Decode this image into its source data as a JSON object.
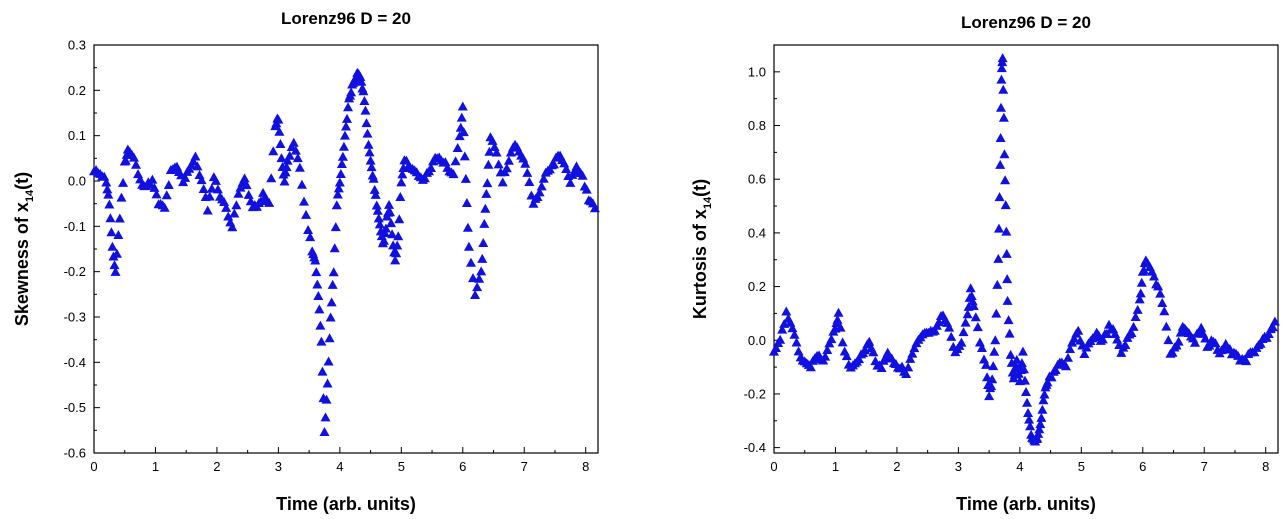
{
  "chart_data": [
    {
      "type": "scatter",
      "title": "Lorenz96   D = 20",
      "xlabel": "Time   (arb.  units)",
      "ylabel": "Skewness of x",
      "ylabel_sub": "14",
      "ylabel_suffix": "(t)",
      "xlim": [
        0,
        8.2
      ],
      "ylim": [
        -0.6,
        0.3
      ],
      "xticks": [
        0,
        1,
        2,
        3,
        4,
        5,
        6,
        7,
        8
      ],
      "yticks": [
        -0.6,
        -0.5,
        -0.4,
        -0.3,
        -0.2,
        -0.1,
        0.0,
        0.1,
        0.2,
        0.3
      ],
      "ytick_labels": [
        "-0.6",
        "-0.5",
        "-0.4",
        "-0.3",
        "-0.2",
        "-0.1",
        "0.0",
        "0.1",
        "0.2",
        "0.3"
      ],
      "marker": "triangle",
      "color": "#1010e0",
      "keypoints": [
        [
          0.0,
          0.02
        ],
        [
          0.1,
          0.02
        ],
        [
          0.2,
          0.0
        ],
        [
          0.25,
          -0.05
        ],
        [
          0.3,
          -0.15
        ],
        [
          0.35,
          -0.2
        ],
        [
          0.42,
          -0.08
        ],
        [
          0.5,
          0.04
        ],
        [
          0.55,
          0.07
        ],
        [
          0.65,
          0.05
        ],
        [
          0.75,
          0.0
        ],
        [
          0.85,
          -0.01
        ],
        [
          0.95,
          0.0
        ],
        [
          1.05,
          -0.05
        ],
        [
          1.15,
          -0.06
        ],
        [
          1.25,
          0.02
        ],
        [
          1.35,
          0.03
        ],
        [
          1.45,
          0.0
        ],
        [
          1.55,
          0.03
        ],
        [
          1.65,
          0.05
        ],
        [
          1.75,
          0.0
        ],
        [
          1.85,
          -0.06
        ],
        [
          1.95,
          0.01
        ],
        [
          2.05,
          -0.03
        ],
        [
          2.15,
          -0.06
        ],
        [
          2.25,
          -0.1
        ],
        [
          2.35,
          -0.03
        ],
        [
          2.45,
          0.01
        ],
        [
          2.55,
          -0.05
        ],
        [
          2.65,
          -0.06
        ],
        [
          2.75,
          -0.03
        ],
        [
          2.85,
          -0.05
        ],
        [
          2.95,
          0.12
        ],
        [
          3.0,
          0.14
        ],
        [
          3.05,
          0.05
        ],
        [
          3.1,
          0.0
        ],
        [
          3.15,
          0.05
        ],
        [
          3.25,
          0.08
        ],
        [
          3.35,
          0.03
        ],
        [
          3.45,
          -0.08
        ],
        [
          3.55,
          -0.15
        ],
        [
          3.6,
          -0.18
        ],
        [
          3.65,
          -0.25
        ],
        [
          3.7,
          -0.35
        ],
        [
          3.75,
          -0.55
        ],
        [
          3.8,
          -0.45
        ],
        [
          3.85,
          -0.3
        ],
        [
          3.9,
          -0.2
        ],
        [
          3.95,
          -0.05
        ],
        [
          4.0,
          0.0
        ],
        [
          4.05,
          0.05
        ],
        [
          4.1,
          0.12
        ],
        [
          4.15,
          0.18
        ],
        [
          4.2,
          0.21
        ],
        [
          4.25,
          0.23
        ],
        [
          4.3,
          0.24
        ],
        [
          4.35,
          0.22
        ],
        [
          4.4,
          0.18
        ],
        [
          4.45,
          0.1
        ],
        [
          4.5,
          0.05
        ],
        [
          4.55,
          0.0
        ],
        [
          4.6,
          -0.05
        ],
        [
          4.65,
          -0.1
        ],
        [
          4.7,
          -0.14
        ],
        [
          4.75,
          -0.1
        ],
        [
          4.8,
          -0.05
        ],
        [
          4.85,
          -0.12
        ],
        [
          4.9,
          -0.18
        ],
        [
          4.95,
          -0.12
        ],
        [
          5.0,
          0.0
        ],
        [
          5.05,
          0.05
        ],
        [
          5.15,
          0.03
        ],
        [
          5.25,
          0.02
        ],
        [
          5.35,
          0.0
        ],
        [
          5.45,
          0.02
        ],
        [
          5.55,
          0.05
        ],
        [
          5.65,
          0.05
        ],
        [
          5.75,
          0.03
        ],
        [
          5.85,
          0.02
        ],
        [
          5.95,
          0.1
        ],
        [
          6.0,
          0.16
        ],
        [
          6.05,
          0.0
        ],
        [
          6.1,
          -0.15
        ],
        [
          6.2,
          -0.25
        ],
        [
          6.3,
          -0.2
        ],
        [
          6.35,
          -0.1
        ],
        [
          6.4,
          0.0
        ],
        [
          6.45,
          0.1
        ],
        [
          6.55,
          0.06
        ],
        [
          6.65,
          0.0
        ],
        [
          6.75,
          0.05
        ],
        [
          6.85,
          0.08
        ],
        [
          6.95,
          0.06
        ],
        [
          7.05,
          0.02
        ],
        [
          7.15,
          -0.05
        ],
        [
          7.25,
          -0.02
        ],
        [
          7.35,
          0.02
        ],
        [
          7.45,
          0.03
        ],
        [
          7.55,
          0.06
        ],
        [
          7.65,
          0.04
        ],
        [
          7.75,
          0.0
        ],
        [
          7.85,
          0.03
        ],
        [
          7.95,
          0.01
        ],
        [
          8.05,
          -0.04
        ],
        [
          8.15,
          -0.06
        ]
      ]
    },
    {
      "type": "scatter",
      "title": "Lorenz96   D = 20",
      "xlabel": "Time   (arb.  units)",
      "ylabel": "Kurtosis of x",
      "ylabel_sub": "14",
      "ylabel_suffix": "(t)",
      "xlim": [
        0,
        8.2
      ],
      "ylim": [
        -0.42,
        1.1
      ],
      "xticks": [
        0,
        1,
        2,
        3,
        4,
        5,
        6,
        7,
        8
      ],
      "yticks": [
        -0.4,
        -0.2,
        0.0,
        0.2,
        0.4,
        0.6,
        0.8,
        1.0
      ],
      "ytick_labels": [
        "-0.4",
        "-0.2",
        "0.0",
        "0.2",
        "0.4",
        "0.6",
        "0.8",
        "1.0"
      ],
      "marker": "triangle",
      "color": "#1010e0",
      "keypoints": [
        [
          0.0,
          -0.05
        ],
        [
          0.1,
          0.0
        ],
        [
          0.2,
          0.1
        ],
        [
          0.3,
          0.05
        ],
        [
          0.4,
          -0.05
        ],
        [
          0.5,
          -0.08
        ],
        [
          0.6,
          -0.1
        ],
        [
          0.7,
          -0.05
        ],
        [
          0.8,
          -0.08
        ],
        [
          0.9,
          -0.02
        ],
        [
          1.0,
          0.05
        ],
        [
          1.05,
          0.1
        ],
        [
          1.15,
          -0.05
        ],
        [
          1.25,
          -0.1
        ],
        [
          1.35,
          -0.08
        ],
        [
          1.45,
          -0.05
        ],
        [
          1.55,
          0.0
        ],
        [
          1.65,
          -0.08
        ],
        [
          1.75,
          -0.1
        ],
        [
          1.85,
          -0.05
        ],
        [
          1.95,
          -0.08
        ],
        [
          2.05,
          -0.1
        ],
        [
          2.15,
          -0.12
        ],
        [
          2.25,
          -0.05
        ],
        [
          2.35,
          0.0
        ],
        [
          2.45,
          0.02
        ],
        [
          2.55,
          0.03
        ],
        [
          2.65,
          0.05
        ],
        [
          2.75,
          0.1
        ],
        [
          2.85,
          0.05
        ],
        [
          2.95,
          -0.05
        ],
        [
          3.05,
          0.0
        ],
        [
          3.15,
          0.1
        ],
        [
          3.2,
          0.2
        ],
        [
          3.25,
          0.12
        ],
        [
          3.35,
          0.0
        ],
        [
          3.45,
          -0.1
        ],
        [
          3.5,
          -0.2
        ],
        [
          3.55,
          -0.15
        ],
        [
          3.6,
          0.0
        ],
        [
          3.65,
          0.3
        ],
        [
          3.68,
          0.65
        ],
        [
          3.7,
          0.98
        ],
        [
          3.72,
          1.06
        ],
        [
          3.75,
          0.7
        ],
        [
          3.78,
          0.4
        ],
        [
          3.8,
          0.15
        ],
        [
          3.85,
          -0.05
        ],
        [
          3.9,
          -0.15
        ],
        [
          3.95,
          -0.08
        ],
        [
          4.0,
          -0.15
        ],
        [
          4.05,
          -0.05
        ],
        [
          4.1,
          -0.2
        ],
        [
          4.15,
          -0.3
        ],
        [
          4.2,
          -0.37
        ],
        [
          4.25,
          -0.38
        ],
        [
          4.3,
          -0.35
        ],
        [
          4.35,
          -0.28
        ],
        [
          4.4,
          -0.2
        ],
        [
          4.45,
          -0.15
        ],
        [
          4.55,
          -0.12
        ],
        [
          4.65,
          -0.08
        ],
        [
          4.75,
          -0.1
        ],
        [
          4.85,
          0.0
        ],
        [
          4.95,
          0.03
        ],
        [
          5.05,
          -0.05
        ],
        [
          5.15,
          0.0
        ],
        [
          5.25,
          0.02
        ],
        [
          5.35,
          0.0
        ],
        [
          5.45,
          0.05
        ],
        [
          5.55,
          0.03
        ],
        [
          5.65,
          -0.05
        ],
        [
          5.75,
          0.0
        ],
        [
          5.85,
          0.05
        ],
        [
          5.95,
          0.15
        ],
        [
          6.0,
          0.25
        ],
        [
          6.05,
          0.3
        ],
        [
          6.15,
          0.25
        ],
        [
          6.25,
          0.2
        ],
        [
          6.35,
          0.1
        ],
        [
          6.45,
          -0.05
        ],
        [
          6.55,
          -0.02
        ],
        [
          6.65,
          0.05
        ],
        [
          6.75,
          0.02
        ],
        [
          6.85,
          0.0
        ],
        [
          6.95,
          0.05
        ],
        [
          7.05,
          -0.02
        ],
        [
          7.15,
          0.0
        ],
        [
          7.25,
          -0.05
        ],
        [
          7.35,
          -0.02
        ],
        [
          7.45,
          -0.05
        ],
        [
          7.55,
          -0.06
        ],
        [
          7.65,
          -0.08
        ],
        [
          7.75,
          -0.05
        ],
        [
          7.85,
          -0.03
        ],
        [
          7.95,
          0.0
        ],
        [
          8.05,
          0.02
        ],
        [
          8.15,
          0.07
        ]
      ]
    }
  ]
}
